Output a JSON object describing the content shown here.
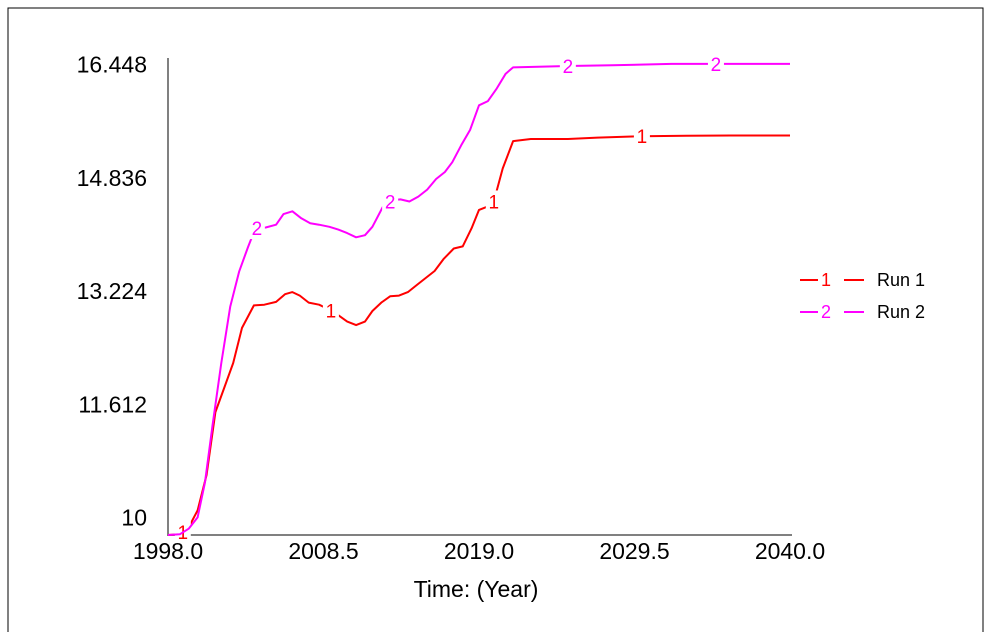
{
  "chart_data": {
    "type": "line",
    "xlabel": "Time: (Year)",
    "ylabel": "",
    "title": "",
    "xlim": [
      1998.0,
      2040.0
    ],
    "ylim": [
      9.75,
      16.8
    ],
    "x_ticks": [
      "1998.0",
      "2008.5",
      "2019.0",
      "2029.5",
      "2040.0"
    ],
    "x_tick_values": [
      1998.0,
      2008.5,
      2019.0,
      2029.5,
      2040.0
    ],
    "y_ticks": [
      "10",
      "11.612",
      "13.224",
      "14.836",
      "16.448"
    ],
    "y_tick_values": [
      10,
      11.612,
      13.224,
      14.836,
      16.448
    ],
    "legend_position": "right",
    "series": [
      {
        "name": "Run 1",
        "marker": "1",
        "color": "#ff0000",
        "marker_x": [
          1999.0,
          2009.0,
          2020.0,
          2030.0
        ],
        "points": [
          [
            1998.0,
            9.75
          ],
          [
            1998.8,
            9.76
          ],
          [
            1999.4,
            9.86
          ],
          [
            2000.0,
            10.1
          ],
          [
            2000.6,
            10.6
          ],
          [
            2001.2,
            11.5
          ],
          [
            2001.8,
            11.85
          ],
          [
            2002.4,
            12.2
          ],
          [
            2003.0,
            12.7
          ],
          [
            2003.8,
            13.02
          ],
          [
            2004.5,
            13.03
          ],
          [
            2005.3,
            13.07
          ],
          [
            2005.9,
            13.18
          ],
          [
            2006.4,
            13.21
          ],
          [
            2006.9,
            13.16
          ],
          [
            2007.5,
            13.06
          ],
          [
            2008.2,
            13.03
          ],
          [
            2008.9,
            12.96
          ],
          [
            2009.5,
            12.88
          ],
          [
            2010.1,
            12.79
          ],
          [
            2010.7,
            12.74
          ],
          [
            2011.3,
            12.79
          ],
          [
            2011.8,
            12.94
          ],
          [
            2012.4,
            13.06
          ],
          [
            2013.0,
            13.15
          ],
          [
            2013.6,
            13.16
          ],
          [
            2014.2,
            13.21
          ],
          [
            2014.8,
            13.31
          ],
          [
            2015.4,
            13.41
          ],
          [
            2016.0,
            13.51
          ],
          [
            2016.6,
            13.68
          ],
          [
            2017.3,
            13.83
          ],
          [
            2017.9,
            13.86
          ],
          [
            2018.5,
            14.12
          ],
          [
            2019.0,
            14.38
          ],
          [
            2019.6,
            14.43
          ],
          [
            2020.0,
            14.5
          ],
          [
            2020.6,
            14.97
          ],
          [
            2021.3,
            15.36
          ],
          [
            2022.5,
            15.39
          ],
          [
            2025.0,
            15.39
          ],
          [
            2027.0,
            15.41
          ],
          [
            2030.0,
            15.43
          ],
          [
            2033.0,
            15.435
          ],
          [
            2036.0,
            15.44
          ],
          [
            2040.0,
            15.44
          ]
        ]
      },
      {
        "name": "Run 2",
        "marker": "2",
        "color": "#ff00ff",
        "marker_x": [
          2004.0,
          2013.0,
          2025.0,
          2035.0
        ],
        "points": [
          [
            1998.0,
            9.75
          ],
          [
            1998.8,
            9.76
          ],
          [
            1999.4,
            9.84
          ],
          [
            2000.0,
            10.0
          ],
          [
            2000.5,
            10.5
          ],
          [
            2001.0,
            11.3
          ],
          [
            2001.6,
            12.2
          ],
          [
            2002.2,
            13.0
          ],
          [
            2002.8,
            13.5
          ],
          [
            2003.4,
            13.85
          ],
          [
            2003.9,
            14.12
          ],
          [
            2004.6,
            14.13
          ],
          [
            2005.3,
            14.17
          ],
          [
            2005.8,
            14.32
          ],
          [
            2006.4,
            14.36
          ],
          [
            2007.0,
            14.26
          ],
          [
            2007.6,
            14.19
          ],
          [
            2008.2,
            14.17
          ],
          [
            2008.9,
            14.14
          ],
          [
            2009.5,
            14.1
          ],
          [
            2010.1,
            14.05
          ],
          [
            2010.7,
            13.99
          ],
          [
            2011.3,
            14.02
          ],
          [
            2011.8,
            14.14
          ],
          [
            2012.5,
            14.42
          ],
          [
            2013.1,
            14.52
          ],
          [
            2013.7,
            14.53
          ],
          [
            2014.3,
            14.5
          ],
          [
            2014.9,
            14.57
          ],
          [
            2015.5,
            14.67
          ],
          [
            2016.1,
            14.82
          ],
          [
            2016.7,
            14.92
          ],
          [
            2017.2,
            15.06
          ],
          [
            2017.8,
            15.3
          ],
          [
            2018.4,
            15.52
          ],
          [
            2019.0,
            15.87
          ],
          [
            2019.6,
            15.93
          ],
          [
            2020.2,
            16.11
          ],
          [
            2020.8,
            16.32
          ],
          [
            2021.3,
            16.41
          ],
          [
            2023.0,
            16.42
          ],
          [
            2025.0,
            16.43
          ],
          [
            2028.0,
            16.44
          ],
          [
            2032.0,
            16.46
          ],
          [
            2036.0,
            16.46
          ],
          [
            2040.0,
            16.46
          ]
        ]
      }
    ]
  }
}
